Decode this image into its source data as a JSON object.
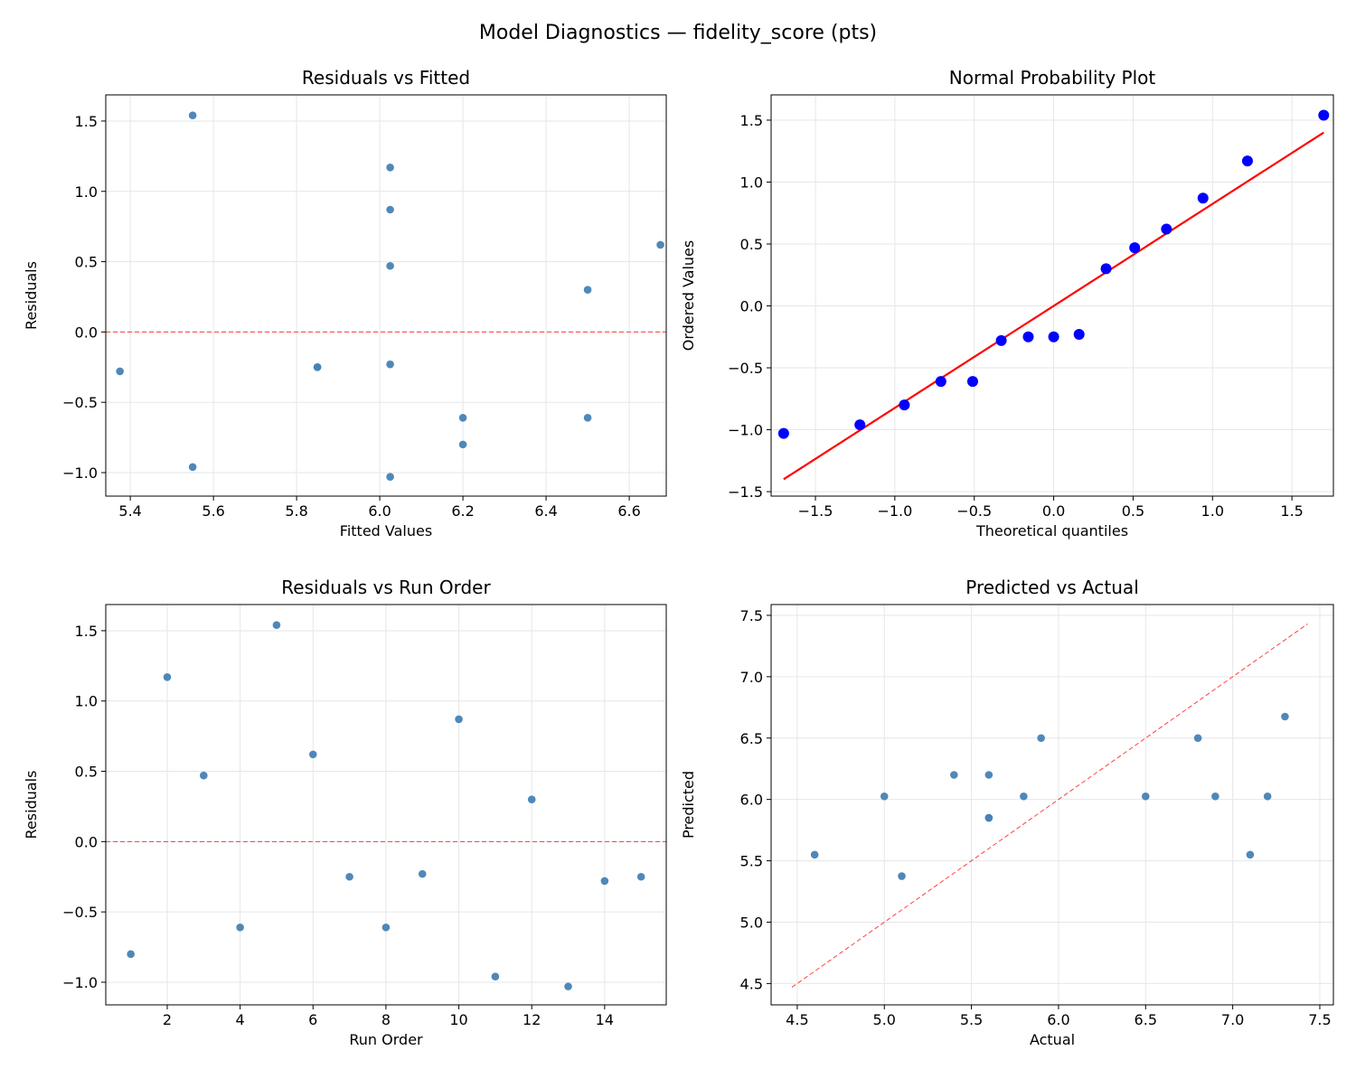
{
  "figure_title": "Model Diagnostics — fidelity_score (pts)",
  "colors": {
    "point": "#4682b4",
    "qq_point": "#0000ff",
    "qq_line": "#ff0000",
    "ref_line": "#ff0000",
    "grid": "#e6e6e6"
  },
  "chart_data": [
    {
      "type": "scatter",
      "title": "Residuals vs Fitted",
      "xlabel": "Fitted Values",
      "ylabel": "Residuals",
      "xlim": [
        5.341,
        6.689
      ],
      "ylim": [
        -1.167,
        1.686
      ],
      "xticks": [
        5.4,
        5.6,
        5.8,
        6.0,
        6.2,
        6.4,
        6.6
      ],
      "xtick_labels": [
        "5.4",
        "5.6",
        "5.8",
        "6.0",
        "6.2",
        "6.4",
        "6.6"
      ],
      "yticks": [
        -1.0,
        -0.5,
        0.0,
        0.5,
        1.0,
        1.5
      ],
      "ytick_labels": [
        "−1.0",
        "−0.5",
        "0.0",
        "0.5",
        "1.0",
        "1.5"
      ],
      "grid": true,
      "hline": 0,
      "x": [
        6.2,
        6.025,
        6.025,
        6.2,
        5.55,
        6.675,
        5.85,
        6.5,
        6.025,
        6.025,
        5.55,
        6.5,
        6.025,
        5.375,
        5.85
      ],
      "y": [
        -0.8,
        1.17,
        0.47,
        -0.61,
        1.54,
        0.62,
        -0.25,
        -0.61,
        -0.23,
        0.87,
        -0.96,
        0.3,
        -1.03,
        -0.28,
        -0.25
      ]
    },
    {
      "type": "scatter",
      "title": "Normal Probability Plot",
      "xlabel": "Theoretical quantiles",
      "ylabel": "Ordered Values",
      "xlim": [
        -1.779,
        1.761
      ],
      "ylim": [
        -1.536,
        1.704
      ],
      "xticks": [
        -1.5,
        -1.0,
        -0.5,
        0.0,
        0.5,
        1.0,
        1.5
      ],
      "xtick_labels": [
        "−1.5",
        "−1.0",
        "−0.5",
        "0.0",
        "0.5",
        "1.0",
        "1.5"
      ],
      "yticks": [
        -1.5,
        -1.0,
        -0.5,
        0.0,
        0.5,
        1.0,
        1.5
      ],
      "ytick_labels": [
        "−1.5",
        "−1.0",
        "−0.5",
        "0.0",
        "0.5",
        "1.0",
        "1.5"
      ],
      "grid": true,
      "x": [
        -1.7,
        -1.22,
        -0.94,
        -0.71,
        -0.51,
        -0.33,
        -0.16,
        0.0,
        0.16,
        0.33,
        0.51,
        0.71,
        0.94,
        1.22,
        1.7
      ],
      "y": [
        -1.03,
        -0.96,
        -0.8,
        -0.61,
        -0.61,
        -0.28,
        -0.25,
        -0.25,
        -0.23,
        0.3,
        0.47,
        0.62,
        0.87,
        1.17,
        1.54
      ],
      "fit_line": {
        "x": [
          -1.7,
          1.7
        ],
        "y": [
          -1.4,
          1.4
        ]
      }
    },
    {
      "type": "scatter",
      "title": "Residuals vs Run Order",
      "xlabel": "Run Order",
      "ylabel": "Residuals",
      "xlim": [
        0.314,
        15.69
      ],
      "ylim": [
        -1.161,
        1.686
      ],
      "xticks": [
        2,
        4,
        6,
        8,
        10,
        12,
        14
      ],
      "xtick_labels": [
        "2",
        "4",
        "6",
        "8",
        "10",
        "12",
        "14"
      ],
      "yticks": [
        -1.0,
        -0.5,
        0.0,
        0.5,
        1.0,
        1.5
      ],
      "ytick_labels": [
        "−1.0",
        "−0.5",
        "0.0",
        "0.5",
        "1.0",
        "1.5"
      ],
      "grid": true,
      "hline": 0,
      "x": [
        1,
        2,
        3,
        4,
        5,
        6,
        7,
        8,
        9,
        10,
        11,
        12,
        13,
        14,
        15
      ],
      "y": [
        -0.8,
        1.17,
        0.47,
        -0.61,
        1.54,
        0.62,
        -0.25,
        -0.61,
        -0.23,
        0.87,
        -0.96,
        0.3,
        -1.03,
        -0.28,
        -0.25
      ]
    },
    {
      "type": "scatter",
      "title": "Predicted vs Actual",
      "xlabel": "Actual",
      "ylabel": "Predicted",
      "xlim": [
        4.35,
        7.578
      ],
      "ylim": [
        4.326,
        7.588
      ],
      "xticks": [
        4.5,
        5.0,
        5.5,
        6.0,
        6.5,
        7.0,
        7.5
      ],
      "xtick_labels": [
        "4.5",
        "5.0",
        "5.5",
        "6.0",
        "6.5",
        "7.0",
        "7.5"
      ],
      "yticks": [
        4.5,
        5.0,
        5.5,
        6.0,
        6.5,
        7.0,
        7.5
      ],
      "ytick_labels": [
        "4.5",
        "5.0",
        "5.5",
        "6.0",
        "6.5",
        "7.0",
        "7.5"
      ],
      "grid": true,
      "diagonal": [
        4.47,
        7.43
      ],
      "x": [
        5.4,
        7.2,
        6.5,
        5.6,
        7.1,
        7.3,
        5.6,
        5.9,
        5.8,
        6.9,
        4.6,
        6.8,
        5.0,
        5.1,
        5.6
      ],
      "y": [
        6.2,
        6.025,
        6.025,
        6.2,
        5.55,
        6.675,
        5.85,
        6.5,
        6.025,
        6.025,
        5.55,
        6.5,
        6.025,
        5.375,
        5.85
      ]
    }
  ]
}
